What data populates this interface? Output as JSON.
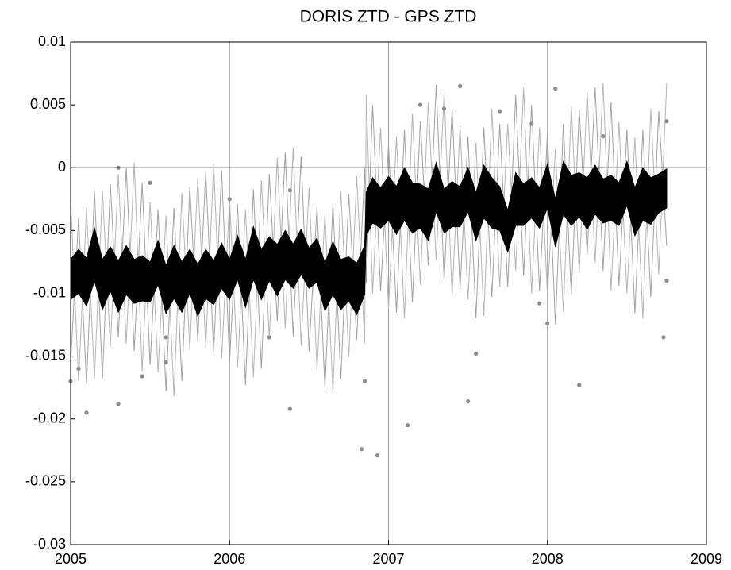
{
  "chart_data": {
    "type": "line",
    "title": "DORIS ZTD - GPS ZTD",
    "xlim": [
      2005,
      2009
    ],
    "xticks": [
      2005,
      2006,
      2007,
      2008,
      2009
    ],
    "ylim": [
      -0.03,
      0.01
    ],
    "yticks": [
      -0.03,
      -0.025,
      -0.02,
      -0.015,
      -0.01,
      -0.005,
      0,
      0.005,
      0.01
    ],
    "xgrid": true,
    "hlines": [
      0
    ],
    "x": [
      2005.0,
      2005.05,
      2005.1,
      2005.15,
      2005.2,
      2005.25,
      2005.3,
      2005.35,
      2005.4,
      2005.45,
      2005.5,
      2005.55,
      2005.6,
      2005.65,
      2005.7,
      2005.75,
      2005.8,
      2005.85,
      2005.9,
      2005.95,
      2006.0,
      2006.05,
      2006.1,
      2006.15,
      2006.2,
      2006.25,
      2006.3,
      2006.35,
      2006.4,
      2006.45,
      2006.5,
      2006.55,
      2006.6,
      2006.65,
      2006.7,
      2006.75,
      2006.8,
      2006.85,
      2006.86,
      2006.9,
      2006.95,
      2007.0,
      2007.05,
      2007.1,
      2007.15,
      2007.2,
      2007.25,
      2007.3,
      2007.35,
      2007.4,
      2007.45,
      2007.5,
      2007.55,
      2007.6,
      2007.65,
      2007.7,
      2007.75,
      2007.8,
      2007.85,
      2007.9,
      2007.95,
      2008.0,
      2008.05,
      2008.1,
      2008.15,
      2008.2,
      2008.25,
      2008.3,
      2008.35,
      2008.4,
      2008.45,
      2008.5,
      2008.55,
      2008.6,
      2008.65,
      2008.7,
      2008.75
    ],
    "series": [
      {
        "type": "line",
        "color": "#b4b4b4",
        "values": [
          -0.0025,
          -0.017,
          -0.0032,
          -0.0168,
          -0.0018,
          -0.0143,
          -0.0005,
          -0.014,
          0.0004,
          -0.0162,
          -0.0027,
          -0.0163,
          -0.0038,
          -0.0182,
          -0.002,
          -0.0145,
          -0.0008,
          -0.0143,
          0.0003,
          -0.0152,
          -0.0025,
          -0.0159,
          -0.0033,
          -0.0167,
          -0.001,
          -0.0135,
          0.0008,
          -0.0128,
          0.0016,
          -0.0141,
          -0.0016,
          -0.0161,
          -0.0036,
          -0.0179,
          -0.0018,
          -0.0151,
          -0.0007,
          -0.014,
          0.0058,
          -0.01,
          0.0032,
          -0.0112,
          0.0025,
          -0.012,
          0.0043,
          -0.0093,
          0.0052,
          -0.0074,
          0.006,
          -0.0103,
          0.0033,
          -0.0105,
          0.002,
          -0.0118,
          0.0047,
          -0.0095,
          0.0035,
          -0.0082,
          0.0064,
          -0.01,
          0.0032,
          -0.0102,
          0.0015,
          -0.0115,
          0.0049,
          -0.0084,
          0.0061,
          -0.0076,
          0.0068,
          -0.0098,
          0.0036,
          -0.01,
          0.0024,
          -0.012,
          0.0047,
          -0.0085,
          0.0068
        ]
      },
      {
        "type": "line",
        "color": "#a0a0a0",
        "values": [
          -0.0155,
          -0.004,
          -0.0172,
          -0.0018,
          -0.0168,
          -0.0013,
          -0.0135,
          0,
          -0.0146,
          -0.0012,
          -0.0157,
          -0.0033,
          -0.0178,
          -0.0032,
          -0.017,
          -0.0015,
          -0.0138,
          -0.0003,
          -0.0147,
          -0.0002,
          -0.0155,
          -0.0029,
          -0.0173,
          -0.0017,
          -0.016,
          -0.0005,
          -0.0122,
          0.0012,
          -0.0134,
          0.0009,
          -0.0146,
          -0.0031,
          -0.0176,
          -0.0029,
          -0.0168,
          -0.0021,
          -0.0137,
          0,
          -0.0092,
          0.005,
          -0.0098,
          0.0018,
          -0.0115,
          0.003,
          -0.0107,
          0.0037,
          -0.0078,
          0.0066,
          -0.009,
          0.0047,
          -0.0097,
          0.0025,
          -0.012,
          0.0032,
          -0.0103,
          0.0035,
          -0.0095,
          0.0058,
          -0.0086,
          0.005,
          -0.0098,
          0.0028,
          -0.0125,
          0.0035,
          -0.0101,
          0.0046,
          -0.0069,
          0.0064,
          -0.0082,
          0.0052,
          -0.0094,
          0.003,
          -0.0116,
          0.003,
          -0.0103,
          0.0045,
          -0.0062
        ]
      },
      {
        "type": "scatter",
        "color": "#8c8c8c",
        "x": [
          2005.3,
          2005.5,
          2005.1,
          2005.0,
          2005.05,
          2005.3,
          2005.6,
          2005.85,
          2006.0,
          2006.38,
          2006.38,
          2006.83,
          2006.93,
          2007.12,
          2007.2,
          2007.35,
          2007.45,
          2007.5,
          2007.55,
          2007.9,
          2008.0,
          2008.2,
          2008.05,
          2008.75,
          2008.73,
          2008.75,
          2008.35,
          2007.7,
          2005.6,
          2006.25,
          2006.85,
          2007.95,
          2005.45
        ],
        "y": [
          0,
          -0.0012,
          -0.0195,
          -0.017,
          -0.016,
          -0.0188,
          -0.0155,
          -0.0095,
          -0.0025,
          -0.0192,
          -0.0018,
          -0.0224,
          -0.0229,
          -0.0205,
          0.005,
          0.0047,
          0.0065,
          -0.0186,
          -0.0148,
          0.0035,
          -0.0124,
          -0.0173,
          0.0063,
          0.0037,
          -0.0135,
          -0.009,
          0.0025,
          0.0045,
          -0.0135,
          -0.0135,
          -0.017,
          -0.0108,
          -0.0166
        ]
      },
      {
        "type": "band",
        "color": "#000000",
        "upper": [
          -0.0073,
          -0.0065,
          -0.0072,
          -0.0048,
          -0.0073,
          -0.0063,
          -0.0074,
          -0.0062,
          -0.0073,
          -0.007,
          -0.0075,
          -0.0058,
          -0.0078,
          -0.0062,
          -0.0075,
          -0.0065,
          -0.0077,
          -0.0065,
          -0.0074,
          -0.006,
          -0.0073,
          -0.0054,
          -0.0073,
          -0.0047,
          -0.0065,
          -0.0055,
          -0.0061,
          -0.005,
          -0.0061,
          -0.0049,
          -0.0064,
          -0.0056,
          -0.0076,
          -0.0059,
          -0.0073,
          -0.0071,
          -0.0076,
          -0.0062,
          -0.0019,
          -0.0008,
          -0.0016,
          -0.0007,
          -0.0015,
          0,
          -0.0012,
          -0.0013,
          -0.0017,
          0.0004,
          -0.0017,
          -0.0011,
          -0.0015,
          0,
          -0.002,
          0.0002,
          -0.0008,
          -0.0015,
          -0.0034,
          -0.0004,
          -0.0013,
          -0.0008,
          -0.0016,
          0.0003,
          -0.0025,
          0.0005,
          -0.0006,
          -0.0004,
          -0.0008,
          0.0002,
          -0.0009,
          -0.0006,
          -0.0012,
          0.0005,
          -0.0016,
          0,
          -0.0008,
          -0.0005,
          -0.0001
        ],
        "lower": [
          -0.0105,
          -0.01,
          -0.011,
          -0.009,
          -0.0113,
          -0.0098,
          -0.0115,
          -0.0101,
          -0.0108,
          -0.0106,
          -0.0107,
          -0.0093,
          -0.0116,
          -0.0104,
          -0.0115,
          -0.01,
          -0.0118,
          -0.0104,
          -0.0109,
          -0.0096,
          -0.0105,
          -0.0089,
          -0.0111,
          -0.0089,
          -0.0105,
          -0.009,
          -0.0102,
          -0.0089,
          -0.0096,
          -0.0085,
          -0.0096,
          -0.0091,
          -0.0114,
          -0.0101,
          -0.0113,
          -0.0106,
          -0.0117,
          -0.0101,
          -0.0054,
          -0.0044,
          -0.0048,
          -0.0042,
          -0.0053,
          -0.0042,
          -0.0052,
          -0.0048,
          -0.0058,
          -0.0035,
          -0.0052,
          -0.0047,
          -0.0047,
          -0.0035,
          -0.0058,
          -0.004,
          -0.0048,
          -0.005,
          -0.0067,
          -0.0046,
          -0.0046,
          -0.004,
          -0.0048,
          -0.0032,
          -0.0063,
          -0.0037,
          -0.0046,
          -0.0039,
          -0.0049,
          -0.0037,
          -0.0044,
          -0.0042,
          -0.0046,
          -0.003,
          -0.0054,
          -0.0042,
          -0.0045,
          -0.0036,
          -0.0032
        ]
      }
    ]
  }
}
